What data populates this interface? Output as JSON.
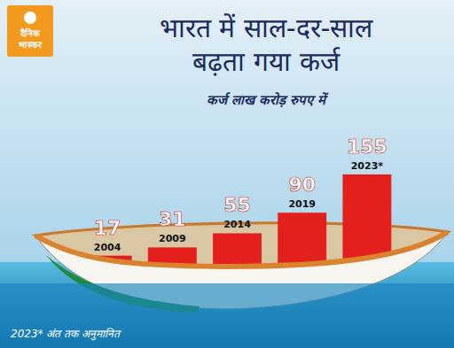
{
  "chart_data": {
    "type": "bar",
    "title": "भारत में साल-दर-साल बढ़ता गया कर्ज",
    "subtitle": "कर्ज लाख करोड़ रुपए में",
    "annotations": [
      "दैनिक भास्कर",
      "2023* अंत तक अनुमानित"
    ],
    "categories": [
      "2004",
      "2009",
      "2014",
      "2019",
      "2023*"
    ],
    "values": [
      17,
      31,
      55,
      90,
      155
    ],
    "color": "#e3201b",
    "ylim": [
      0,
      155
    ],
    "data_labels": true,
    "tick_labels": false,
    "grid": false
  }
}
